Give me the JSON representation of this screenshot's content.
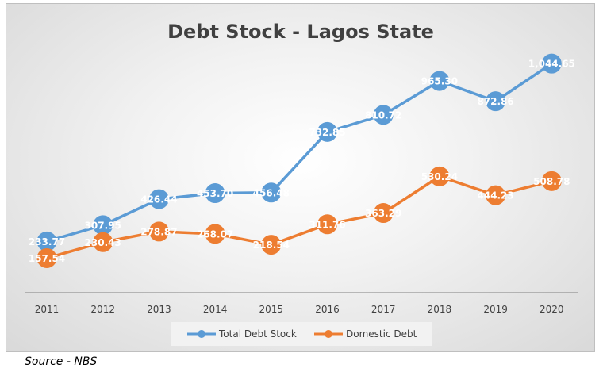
{
  "colors": {
    "total": "#5b9bd5",
    "domestic": "#ed7d31",
    "axis": "#808080"
  },
  "source": "Source - NBS",
  "chart_data": {
    "type": "line",
    "title": "Debt Stock - Lagos State",
    "categories": [
      "2011",
      "2012",
      "2013",
      "2014",
      "2015",
      "2016",
      "2017",
      "2018",
      "2019",
      "2020"
    ],
    "series": [
      {
        "name": "Total Debt Stock",
        "values": [
          233.77,
          307.95,
          426.44,
          453.7,
          456.48,
          732.85,
          810.72,
          965.3,
          872.86,
          1044.65
        ],
        "labels": [
          "233.77",
          "307.95",
          "426.44",
          "453.70",
          "456.48",
          "732.85",
          "810.72",
          "965.30",
          "872.86",
          "1,044.65"
        ]
      },
      {
        "name": "Domestic Debt",
        "values": [
          157.54,
          230.43,
          278.87,
          268.07,
          218.54,
          311.76,
          363.29,
          530.24,
          444.23,
          508.78
        ],
        "labels": [
          "157.54",
          "230.43",
          "278.87",
          "268.07",
          "218.54",
          "311.76",
          "363.29",
          "530.24",
          "444.23",
          "508.78"
        ]
      }
    ],
    "xlabel": "",
    "ylabel": "",
    "grid": false,
    "legend": "bottom"
  }
}
